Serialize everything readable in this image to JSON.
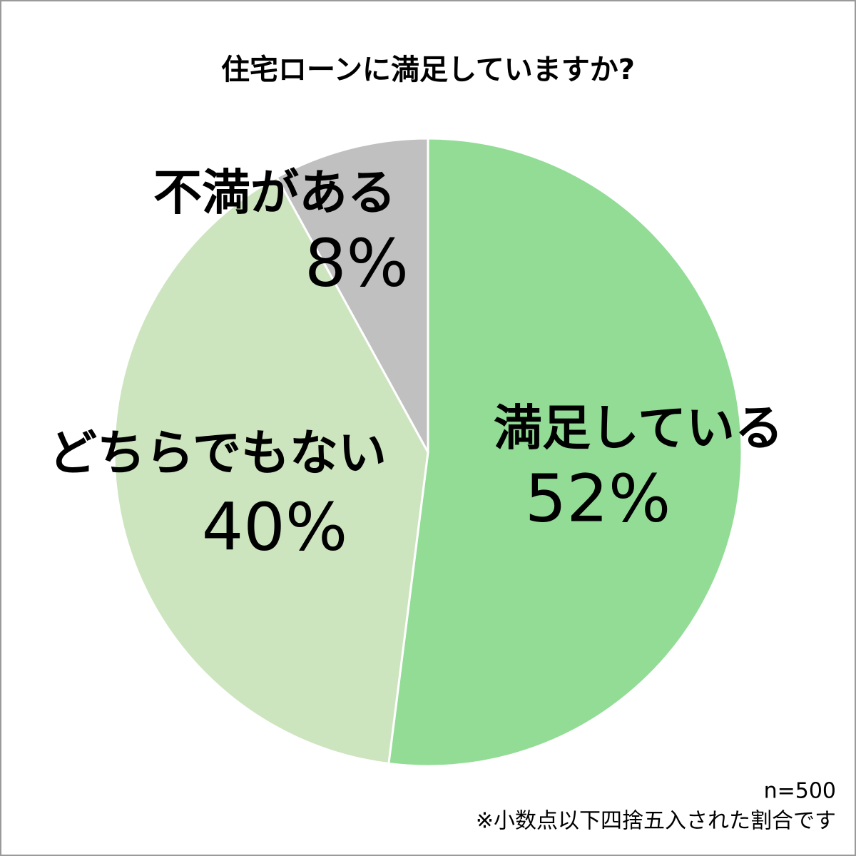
{
  "chart_data": {
    "type": "pie",
    "title": "住宅ローンに満足していますか?",
    "categories": [
      "満足している",
      "どちらでもない",
      "不満がある"
    ],
    "values": [
      52,
      40,
      8
    ],
    "value_labels": [
      "52%",
      "40%",
      "8%"
    ],
    "colors": [
      "#92dc96",
      "#cde5bf",
      "#c0c0c0"
    ],
    "notes": [
      "n=500",
      "※小数点以下四捨五入された割合です"
    ]
  }
}
